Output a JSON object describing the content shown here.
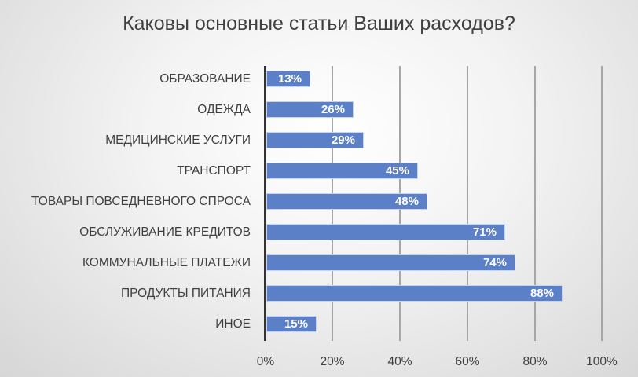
{
  "chart_data": {
    "type": "bar",
    "orientation": "horizontal",
    "title": "Каковы основные статьи Ваших расходов?",
    "xlabel": "",
    "ylabel": "",
    "categories": [
      "ОБРАЗОВАНИЕ",
      "ОДЕЖДА",
      "МЕДИЦИНСКИЕ УСЛУГИ",
      "ТРАНСПОРТ",
      "ТОВАРЫ ПОВСЕДНЕВНОГО СПРОСА",
      "ОБСЛУЖИВАНИЕ КРЕДИТОВ",
      "КОММУНАЛЬНЫЕ ПЛАТЕЖИ",
      "ПРОДУКТЫ ПИТАНИЯ",
      "ИНОЕ"
    ],
    "values": [
      13,
      26,
      29,
      45,
      48,
      71,
      74,
      88,
      15
    ],
    "value_labels": [
      "13%",
      "26%",
      "29%",
      "45%",
      "48%",
      "71%",
      "74%",
      "88%",
      "15%"
    ],
    "xlim": [
      0,
      100
    ],
    "x_ticks": [
      "0%",
      "20%",
      "40%",
      "60%",
      "80%",
      "100%"
    ],
    "grid": "vertical",
    "legend": "none",
    "bar_color": "#5b80c8"
  }
}
